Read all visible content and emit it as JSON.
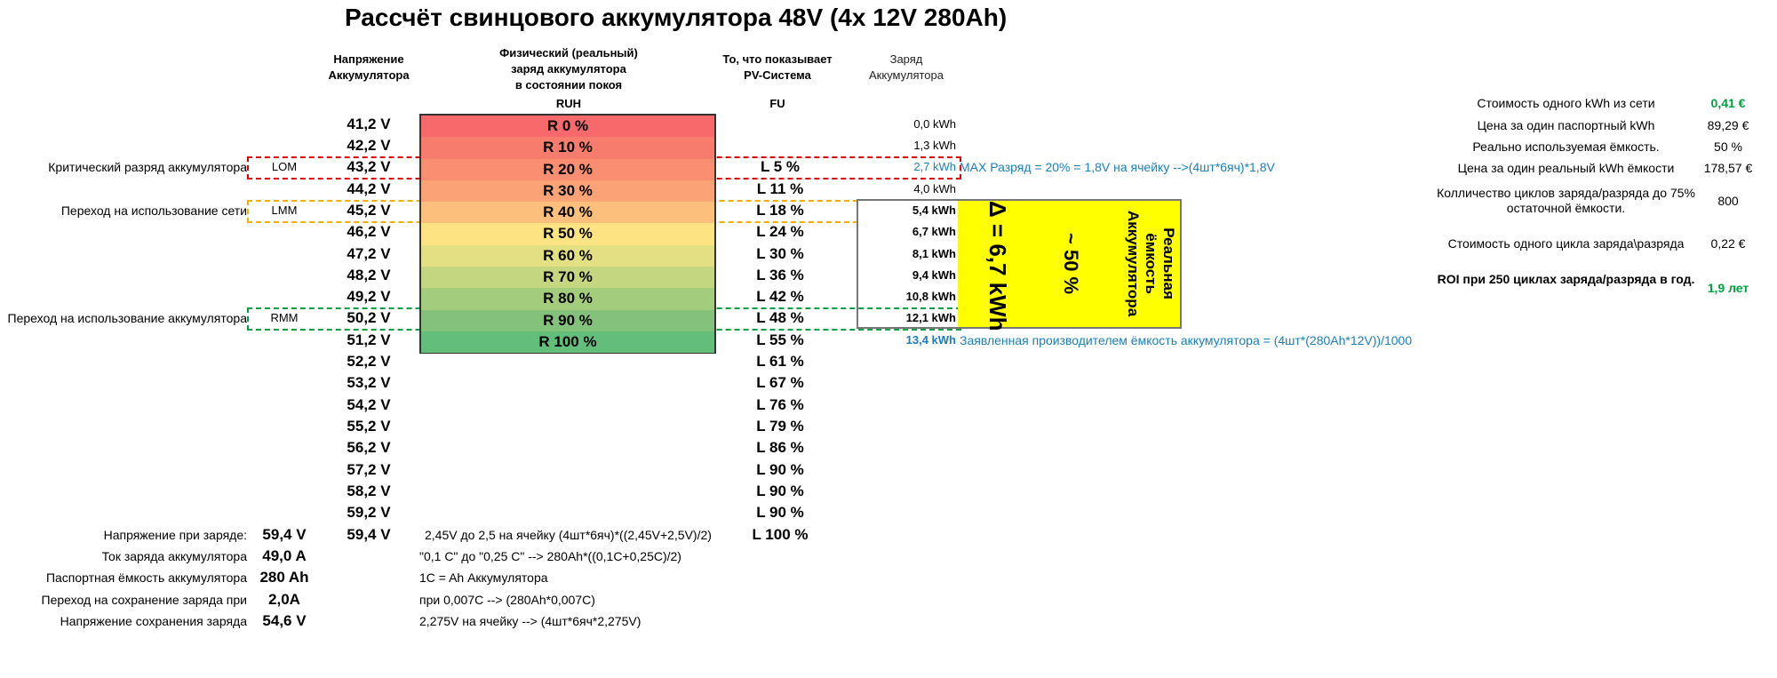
{
  "title": "Рассчёт свинцового аккумулятора 48V (4x 12V 280Ah)",
  "headers": {
    "voltage": [
      "Напряжение",
      "Аккумулятора"
    ],
    "physical": [
      "Физический (реальный)",
      "заряд аккумулятора",
      "в состоянии покоя"
    ],
    "pv": [
      "То, что показывает",
      "PV-Система"
    ],
    "charge": [
      "Заряд",
      "Аккумулятора"
    ],
    "ruh": "RUH",
    "fu": "FU"
  },
  "voltages": [
    "41,2 V",
    "42,2 V",
    "43,2 V",
    "44,2 V",
    "45,2 V",
    "46,2 V",
    "47,2 V",
    "48,2 V",
    "49,2 V",
    "50,2 V",
    "51,2 V",
    "52,2 V",
    "53,2 V",
    "54,2 V",
    "55,2 V",
    "56,2 V",
    "57,2 V",
    "58,2 V",
    "59,2 V",
    "59,4 V"
  ],
  "ruh": [
    {
      "label": "R 0 %",
      "color": "#f8696b"
    },
    {
      "label": "R 10 %",
      "color": "#f87c6d"
    },
    {
      "label": "R 20 %",
      "color": "#f98f70"
    },
    {
      "label": "R 30 %",
      "color": "#fba276"
    },
    {
      "label": "R 40 %",
      "color": "#fcc07c"
    },
    {
      "label": "R 50 %",
      "color": "#fee382"
    },
    {
      "label": "R 60 %",
      "color": "#e3e083"
    },
    {
      "label": "R 70 %",
      "color": "#c4d680"
    },
    {
      "label": "R 80 %",
      "color": "#a3cc7d"
    },
    {
      "label": "R 90 %",
      "color": "#84c27b"
    },
    {
      "label": "R 100 %",
      "color": "#63be7b"
    }
  ],
  "fu": [
    "",
    "",
    "L 5 %",
    "L 11 %",
    "L 18 %",
    "L 24 %",
    "L 30 %",
    "L 36 %",
    "L 42 %",
    "L 48 %",
    "L 55 %",
    "L 61 %",
    "L 67 %",
    "L 76 %",
    "L 79 %",
    "L 86 %",
    "L 90 %",
    "L 90 %",
    "L 90 %",
    "L 100 %"
  ],
  "kwh": [
    "0,0 kWh",
    "1,3 kWh",
    "2,7 kWh",
    "4,0 kWh",
    "5,4 kWh",
    "6,7 kWh",
    "8,1 kWh",
    "9,4 kWh",
    "10,8 kWh",
    "12,1 kWh",
    "13,4 kWh"
  ],
  "left_labels": {
    "critical": "Критический разряд аккумулятора",
    "grid": "Переход на использование сети",
    "battery": "Переход на использование аккумулятора"
  },
  "modes": {
    "lom": "LOM",
    "lmm": "LMM",
    "rmm": "RMM"
  },
  "notes": {
    "max_discharge": "MAX Разряд = 20% = 1,8V на ячейку -->(4шт*6яч)*1,8V",
    "declared": "Заявленная производителем ёмкость аккумулятора = (4шт*(280Ah*12V))/1000",
    "charge_volt": "2,45V до 2,5 на ячейку (4шт*6яч)*((2,45V+2,5V)/2)",
    "charge_current": "\"0,1 C\" до \"0,25 C\" --> 280Ah*((0,1C+0,25C)/2)",
    "capacity": "1C = Ah Аккумулятора",
    "float_switch": "при 0,007C --> (280Ah*0,007C)",
    "float_volt": "2,275V на ячейку --> (4шт*6яч*2,275V)"
  },
  "yellow_box": {
    "delta": "Δ = 6,7 kWh",
    "percent": "~ 50 %",
    "real_cap": [
      "Реальная",
      "ёмкость",
      "Аккумулятора"
    ]
  },
  "bottom": [
    {
      "label": "Напряжение при заряде:",
      "value": "59,4 V"
    },
    {
      "label": "Ток заряда аккумулятора",
      "value": "49,0 A"
    },
    {
      "label": "Паспортная ёмкость аккумулятора",
      "value": "280 Ah"
    },
    {
      "label": "Переход на сохранение заряда при",
      "value": "2,0A"
    },
    {
      "label": "Напряжение сохранения заряда",
      "value": "54,6 V"
    }
  ],
  "right_panel": [
    {
      "label": "Стоимость одного kWh из сети",
      "value": "0,41 €",
      "green": true
    },
    {
      "label": "Цена за один паспортный kWh",
      "value": "89,29 €",
      "green": false
    },
    {
      "label": "Реально используемая ёмкость.",
      "value": "50 %",
      "green": false
    },
    {
      "label": "Цена за один реальный kWh ёмкости",
      "value": "178,57 €",
      "green": false
    },
    {
      "label": "Колличество циклов заряда/разряда до 75% остаточной ёмкости.",
      "value": "800",
      "green": false
    },
    {
      "label": "Стоимость одного цикла заряда\\разряда",
      "value": "0,22 €",
      "green": false
    },
    {
      "label": "ROI  при 250 циклах заряда/разряда в год.",
      "value": "1,9 лет",
      "green": true
    }
  ]
}
